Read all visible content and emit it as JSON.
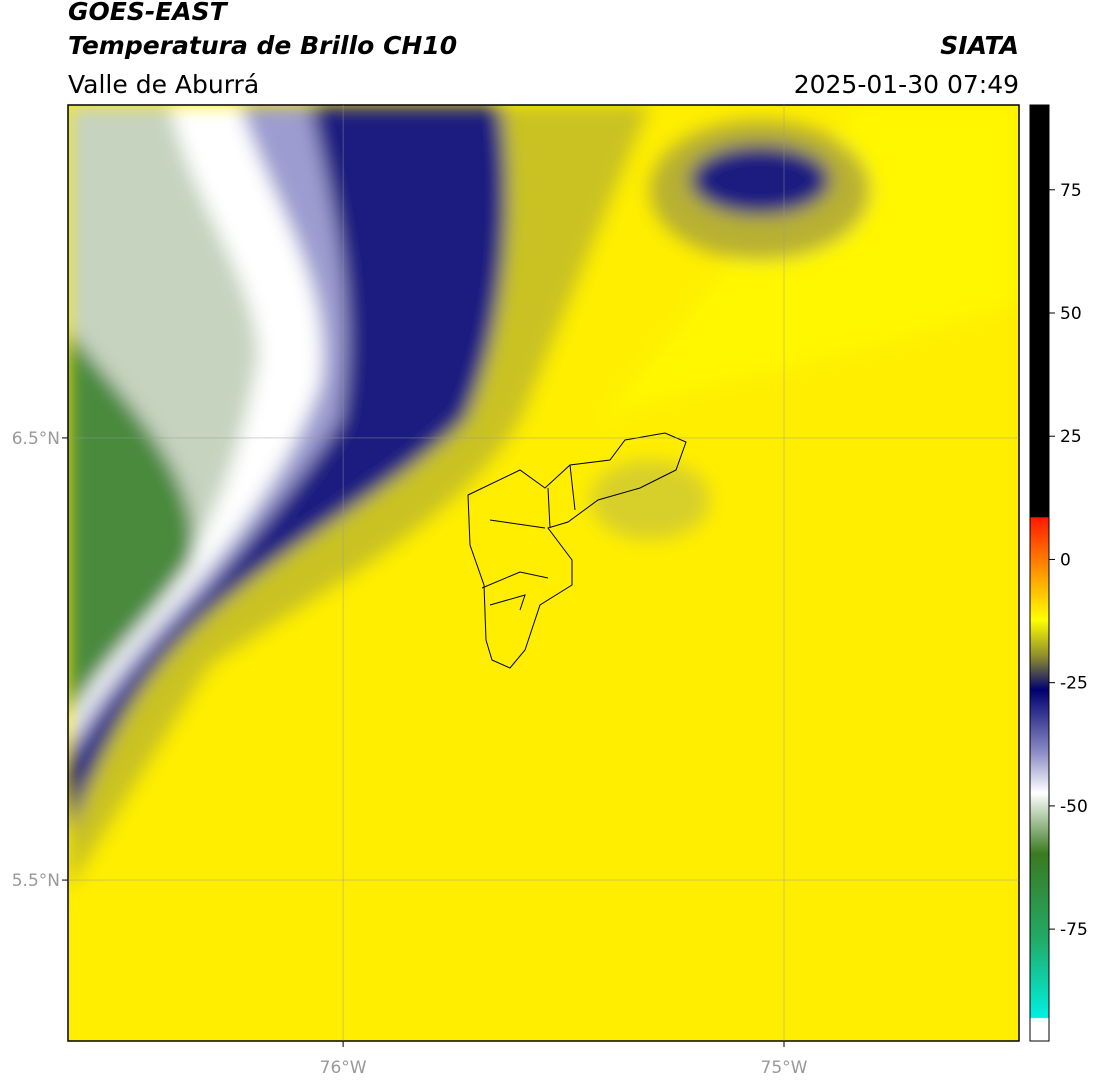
{
  "header": {
    "title": "GOES-EAST",
    "subtitle": "Temperatura de Brillo CH10",
    "source": "SIATA",
    "region": "Valle de Aburrá",
    "datetime": "2025-01-30 07:49"
  },
  "map": {
    "lonlim": [
      -76.624,
      -74.467
    ],
    "latlim": [
      5.136,
      7.253
    ],
    "lon_ticks": [
      {
        "value": -76,
        "label": "76°W"
      },
      {
        "value": -75,
        "label": "75°W"
      }
    ],
    "lat_ticks": [
      {
        "value": 6.5,
        "label": "6.5°N"
      },
      {
        "value": 5.5,
        "label": "5.5°N"
      }
    ]
  },
  "colorbar": {
    "lim": [
      -97.7,
      92.2
    ],
    "ticks": [
      75,
      50,
      25,
      0,
      -25,
      -50,
      -75
    ]
  }
}
